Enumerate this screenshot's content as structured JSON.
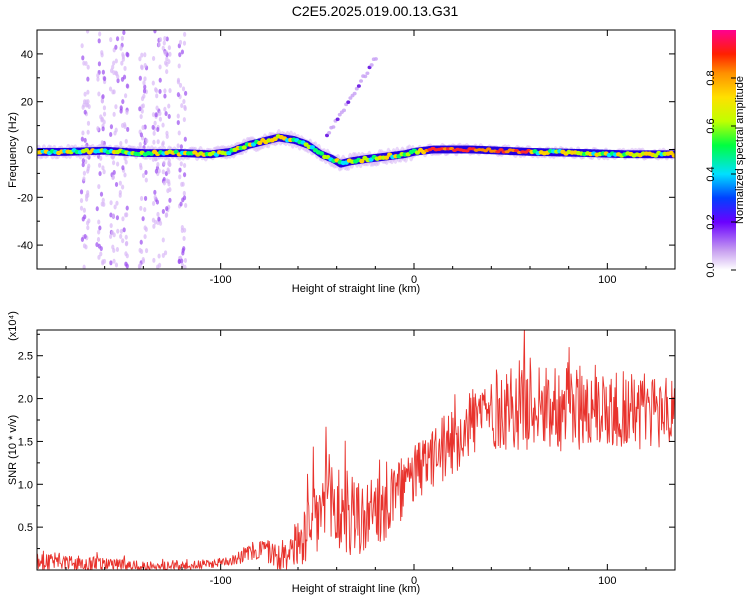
{
  "title": "C2E5.2025.019.00.13.G31",
  "chart_data": [
    {
      "type": "scatter",
      "xlabel": "Height of straight line (km)",
      "ylabel": "Frequency (Hz)",
      "xlim": [
        -195,
        135
      ],
      "ylim": [
        -50,
        50
      ],
      "xticks": [
        -100,
        0,
        100
      ],
      "yticks": [
        -40,
        -20,
        0,
        20,
        40
      ],
      "grid": false,
      "ridge": {
        "x": [
          -195,
          -180,
          -160,
          -140,
          -120,
          -105,
          -95,
          -85,
          -75,
          -70,
          -62,
          -55,
          -48,
          -42,
          -38,
          -33,
          -25,
          -15,
          -5,
          0,
          10,
          30,
          60,
          90,
          110,
          135
        ],
        "freq": [
          -1,
          -1,
          -0.5,
          -1.5,
          -1.5,
          -2,
          -1,
          2,
          4,
          5,
          4,
          2,
          -2,
          -4,
          -6,
          -5,
          -4,
          -3,
          -2,
          -1,
          0,
          0,
          -1,
          -1.5,
          -2,
          -2
        ]
      },
      "colorbar": {
        "label": "Normalized spectral amplitude",
        "range": [
          0,
          1
        ],
        "ticks": [
          0.0,
          0.2,
          0.4,
          0.6,
          0.8
        ]
      }
    },
    {
      "type": "line",
      "xlabel": "Height of straight line (km)",
      "ylabel": "SNR (10 * v/v)",
      "scale_label": "(x10⁴)",
      "xlim": [
        -195,
        135
      ],
      "ylim": [
        0,
        2.8
      ],
      "xticks": [
        -100,
        0,
        100
      ],
      "yticks": [
        0.5,
        1.0,
        1.5,
        2.0,
        2.5
      ],
      "ytick_labels": [
        "0.5",
        "1.0",
        "1.5",
        "2.0",
        "2.5"
      ],
      "color": "#e8322c",
      "trend": {
        "x": [
          -195,
          -180,
          -160,
          -140,
          -120,
          -105,
          -95,
          -85,
          -78,
          -70,
          -60,
          -52,
          -45,
          -38,
          -30,
          -20,
          -10,
          0,
          10,
          20,
          30,
          40,
          50,
          60,
          80,
          100,
          120,
          135
        ],
        "value": [
          0.12,
          0.08,
          0.05,
          0.04,
          0.05,
          0.07,
          0.12,
          0.2,
          0.25,
          0.15,
          0.3,
          0.55,
          0.8,
          0.7,
          0.6,
          0.6,
          0.85,
          1.1,
          1.3,
          1.5,
          1.75,
          1.85,
          1.9,
          1.95,
          1.9,
          1.9,
          1.85,
          1.85
        ]
      },
      "noise": {
        "x": [
          -195,
          -100,
          -75,
          -60,
          -50,
          -40,
          -30,
          -20,
          -10,
          0,
          20,
          60,
          100,
          135
        ],
        "amplitude": [
          0.12,
          0.05,
          0.15,
          0.3,
          0.55,
          0.6,
          0.5,
          0.45,
          0.4,
          0.35,
          0.4,
          0.55,
          0.5,
          0.45
        ]
      }
    }
  ]
}
